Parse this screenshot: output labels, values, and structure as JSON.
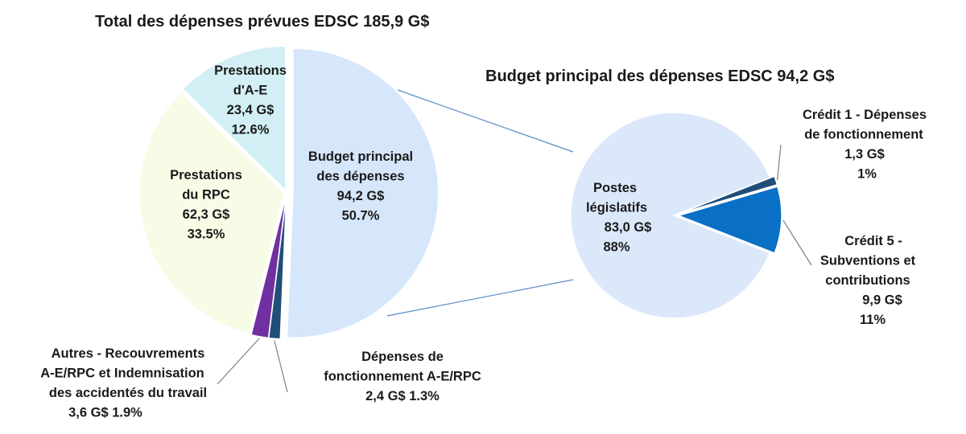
{
  "chart_data": [
    {
      "type": "pie",
      "title": "Total des dépenses prévues EDSC 185,9 G$",
      "slices": [
        {
          "key": "budget",
          "lines": [
            "Budget principal",
            "des dépenses",
            "94,2 G$",
            "50.7%"
          ],
          "value": 94.2,
          "percent": 50.7,
          "color": "#d6e6fb"
        },
        {
          "key": "operating",
          "lines": [
            "Dépenses de",
            "fonctionnement A-E/RPC",
            "2,4 G$      1.3%"
          ],
          "value": 2.4,
          "percent": 1.3,
          "color": "#1f4e79"
        },
        {
          "key": "other",
          "lines": [
            "Autres - Recouvrements",
            "A-E/RPC et Indemnisation",
            "des accidentés du travail",
            "3,6 G$      1.9%"
          ],
          "value": 3.6,
          "percent": 1.9,
          "color": "#7030a0"
        },
        {
          "key": "cpp",
          "lines": [
            "Prestations",
            "du RPC",
            "62,3 G$",
            "33.5%"
          ],
          "value": 62.3,
          "percent": 33.5,
          "color": "#f6fce6"
        },
        {
          "key": "ei",
          "lines": [
            "Prestations",
            "d'A-E",
            "23,4 G$",
            "12.6%"
          ],
          "value": 23.4,
          "percent": 12.6,
          "color": "#d3eff6"
        }
      ]
    },
    {
      "type": "pie",
      "title": "Budget principal des dépenses EDSC  94,2 G$",
      "slices": [
        {
          "key": "vote1",
          "lines": [
            "Crédit 1 - Dépenses",
            "de fonctionnement",
            "1,3 G$",
            "1%"
          ],
          "value": 1.3,
          "percent": 1,
          "color": "#1f4e79"
        },
        {
          "key": "vote5",
          "lines": [
            "Crédit 5 -",
            "Subventions et",
            "contributions",
            "9,9 G$",
            "11%"
          ],
          "value": 9.9,
          "percent": 11,
          "color": "#0a70c6"
        },
        {
          "key": "statutory",
          "lines": [
            "Postes",
            "législatifs",
            "83,0 G$",
            "88%"
          ],
          "value": 83.0,
          "percent": 88,
          "color": "#dbe8fa"
        }
      ]
    }
  ]
}
